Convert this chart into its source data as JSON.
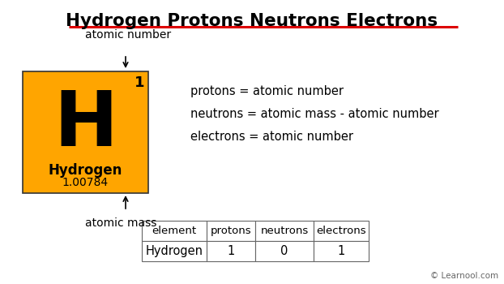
{
  "title": "Hydrogen Protons Neutrons Electrons",
  "title_underline_color": "#dd0000",
  "bg_color": "#ffffff",
  "element_box_color": "#FFA500",
  "element_symbol": "H",
  "element_name": "Hydrogen",
  "atomic_number": "1",
  "atomic_mass": "1.00784",
  "label_atomic_number": "atomic number",
  "label_atomic_mass": "atomic mass",
  "info_lines": [
    "protons = atomic number",
    "neutrons = atomic mass - atomic number",
    "electrons = atomic number"
  ],
  "table_headers": [
    "element",
    "protons",
    "neutrons",
    "electrons"
  ],
  "table_row": [
    "Hydrogen",
    "1",
    "0",
    "1"
  ],
  "watermark": "© Learnool.com"
}
